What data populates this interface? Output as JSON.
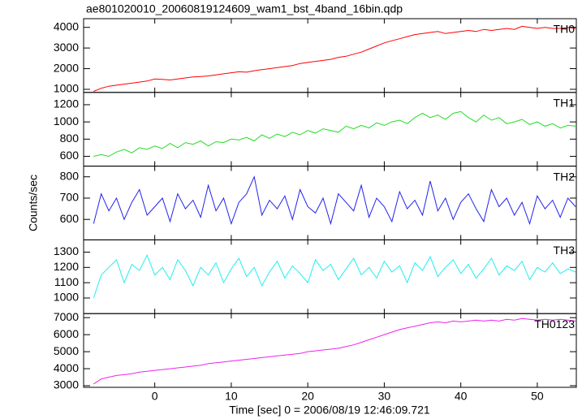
{
  "figure": {
    "title": "ae801020010_20060819124609_wam1_bst_4band_16bin.qdp",
    "xlabel": "Time [sec] 0 = 2006/08/19 12:46:09.721",
    "ylabel": "Counts/sec"
  },
  "chart_data": [
    {
      "type": "line",
      "xlim": [
        -9.3,
        55.1
      ],
      "xticks": [
        0,
        10,
        20,
        30,
        40,
        50
      ],
      "ylim": [
        850,
        4420
      ],
      "yticks": [
        1000,
        2000,
        3000,
        4000
      ],
      "x": [
        -8,
        -7,
        -6,
        -5,
        -4,
        -3,
        -2,
        -1,
        0,
        1,
        2,
        3,
        4,
        5,
        6,
        7,
        8,
        9,
        10,
        11,
        12,
        13,
        14,
        15,
        16,
        17,
        18,
        19,
        20,
        21,
        22,
        23,
        24,
        25,
        26,
        27,
        28,
        29,
        30,
        31,
        32,
        33,
        34,
        35,
        36,
        37,
        38,
        39,
        40,
        41,
        42,
        43,
        44,
        45,
        46,
        47,
        48,
        49,
        50,
        51,
        52,
        53,
        54,
        55
      ],
      "series": [
        {
          "name": "TH0",
          "color": "#ff0000",
          "values": [
            900,
            1050,
            1150,
            1200,
            1250,
            1300,
            1350,
            1400,
            1500,
            1480,
            1450,
            1500,
            1550,
            1600,
            1620,
            1650,
            1700,
            1750,
            1800,
            1850,
            1830,
            1900,
            1950,
            2000,
            2050,
            2100,
            2150,
            2250,
            2300,
            2350,
            2400,
            2450,
            2550,
            2600,
            2700,
            2800,
            2950,
            3100,
            3250,
            3350,
            3450,
            3550,
            3650,
            3700,
            3750,
            3800,
            3700,
            3750,
            3800,
            3850,
            3800,
            3900,
            3850,
            3900,
            3950,
            3900,
            4050,
            4000,
            3950,
            4000,
            3950,
            3950,
            4000,
            3950
          ]
        }
      ]
    },
    {
      "type": "line",
      "xlim": [
        -9.3,
        55.1
      ],
      "xticks": [
        0,
        10,
        20,
        30,
        40,
        50
      ],
      "ylim": [
        486,
        1343
      ],
      "yticks": [
        600,
        800,
        1000,
        1200
      ],
      "x": [
        -8,
        -7,
        -6,
        -5,
        -4,
        -3,
        -2,
        -1,
        0,
        1,
        2,
        3,
        4,
        5,
        6,
        7,
        8,
        9,
        10,
        11,
        12,
        13,
        14,
        15,
        16,
        17,
        18,
        19,
        20,
        21,
        22,
        23,
        24,
        25,
        26,
        27,
        28,
        29,
        30,
        31,
        32,
        33,
        34,
        35,
        36,
        37,
        38,
        39,
        40,
        41,
        42,
        43,
        44,
        45,
        46,
        47,
        48,
        49,
        50,
        51,
        52,
        53,
        54,
        55
      ],
      "series": [
        {
          "name": "TH1",
          "color": "#22dd22",
          "values": [
            600,
            620,
            600,
            650,
            680,
            640,
            700,
            680,
            720,
            690,
            750,
            700,
            760,
            740,
            780,
            720,
            770,
            760,
            800,
            790,
            820,
            780,
            850,
            810,
            860,
            830,
            880,
            850,
            900,
            870,
            920,
            900,
            880,
            950,
            920,
            960,
            930,
            990,
            960,
            1000,
            1020,
            980,
            1050,
            1100,
            1050,
            1080,
            1030,
            1100,
            1120,
            1050,
            1000,
            1080,
            1020,
            1050,
            980,
            1000,
            1030,
            970,
            1000,
            950,
            980,
            930,
            960,
            950
          ]
        }
      ]
    },
    {
      "type": "line",
      "xlim": [
        -9.3,
        55.1
      ],
      "xticks": [
        0,
        10,
        20,
        30,
        40,
        50
      ],
      "ylim": [
        504,
        850
      ],
      "yticks": [
        600,
        700,
        800
      ],
      "x": [
        -8,
        -7,
        -6,
        -5,
        -4,
        -3,
        -2,
        -1,
        0,
        1,
        2,
        3,
        4,
        5,
        6,
        7,
        8,
        9,
        10,
        11,
        12,
        13,
        14,
        15,
        16,
        17,
        18,
        19,
        20,
        21,
        22,
        23,
        24,
        25,
        26,
        27,
        28,
        29,
        30,
        31,
        32,
        33,
        34,
        35,
        36,
        37,
        38,
        39,
        40,
        41,
        42,
        43,
        44,
        45,
        46,
        47,
        48,
        49,
        50,
        51,
        52,
        53,
        54,
        55
      ],
      "series": [
        {
          "name": "TH2",
          "color": "#2222ee",
          "values": [
            580,
            720,
            640,
            700,
            600,
            680,
            740,
            620,
            660,
            700,
            590,
            720,
            650,
            690,
            610,
            760,
            640,
            700,
            580,
            680,
            720,
            800,
            620,
            690,
            650,
            710,
            600,
            740,
            660,
            630,
            700,
            580,
            720,
            680,
            640,
            760,
            610,
            700,
            660,
            590,
            730,
            650,
            690,
            620,
            780,
            640,
            700,
            600,
            680,
            720,
            650,
            590,
            740,
            660,
            700,
            620,
            680,
            580,
            710,
            650,
            690,
            610,
            700,
            660
          ]
        }
      ]
    },
    {
      "type": "line",
      "xlim": [
        -9.3,
        55.1
      ],
      "xticks": [
        0,
        10,
        20,
        30,
        40,
        50
      ],
      "ylim": [
        898,
        1380
      ],
      "yticks": [
        1000,
        1100,
        1200,
        1300
      ],
      "x": [
        -8,
        -7,
        -6,
        -5,
        -4,
        -3,
        -2,
        -1,
        0,
        1,
        2,
        3,
        4,
        5,
        6,
        7,
        8,
        9,
        10,
        11,
        12,
        13,
        14,
        15,
        16,
        17,
        18,
        19,
        20,
        21,
        22,
        23,
        24,
        25,
        26,
        27,
        28,
        29,
        30,
        31,
        32,
        33,
        34,
        35,
        36,
        37,
        38,
        39,
        40,
        41,
        42,
        43,
        44,
        45,
        46,
        47,
        48,
        49,
        50,
        51,
        52,
        53,
        54,
        55
      ],
      "series": [
        {
          "name": "TH3",
          "color": "#22eeee",
          "values": [
            1000,
            1150,
            1200,
            1250,
            1100,
            1220,
            1180,
            1280,
            1150,
            1200,
            1120,
            1250,
            1180,
            1080,
            1200,
            1150,
            1230,
            1100,
            1190,
            1260,
            1140,
            1200,
            1080,
            1170,
            1240,
            1130,
            1210,
            1160,
            1100,
            1250,
            1180,
            1220,
            1120,
            1190,
            1260,
            1150,
            1200,
            1130,
            1240,
            1170,
            1210,
            1100,
            1230,
            1180,
            1270,
            1140,
            1200,
            1250,
            1160,
            1220,
            1130,
            1190,
            1260,
            1150,
            1210,
            1180,
            1240,
            1120,
            1200,
            1170,
            1230,
            1160,
            1190,
            1170
          ]
        }
      ]
    },
    {
      "type": "line",
      "xlim": [
        -9.3,
        55.1
      ],
      "xticks": [
        0,
        10,
        20,
        30,
        40,
        50
      ],
      "ylim": [
        2905,
        7238
      ],
      "yticks": [
        3000,
        4000,
        5000,
        6000,
        7000
      ],
      "x": [
        -8,
        -7,
        -6,
        -5,
        -4,
        -3,
        -2,
        -1,
        0,
        1,
        2,
        3,
        4,
        5,
        6,
        7,
        8,
        9,
        10,
        11,
        12,
        13,
        14,
        15,
        16,
        17,
        18,
        19,
        20,
        21,
        22,
        23,
        24,
        25,
        26,
        27,
        28,
        29,
        30,
        31,
        32,
        33,
        34,
        35,
        36,
        37,
        38,
        39,
        40,
        41,
        42,
        43,
        44,
        45,
        46,
        47,
        48,
        49,
        50,
        51,
        52,
        53,
        54,
        55
      ],
      "series": [
        {
          "name": "TH0123",
          "color": "#ee22ee",
          "values": [
            3100,
            3400,
            3500,
            3600,
            3650,
            3700,
            3800,
            3850,
            3900,
            3950,
            4000,
            4050,
            4100,
            4150,
            4200,
            4300,
            4350,
            4400,
            4450,
            4500,
            4550,
            4600,
            4650,
            4700,
            4750,
            4800,
            4850,
            4900,
            5000,
            5050,
            5100,
            5150,
            5200,
            5300,
            5400,
            5550,
            5700,
            5850,
            6000,
            6150,
            6300,
            6400,
            6500,
            6600,
            6700,
            6750,
            6700,
            6800,
            6750,
            6800,
            6850,
            6800,
            6850,
            6800,
            6900,
            6850,
            6950,
            6900,
            6850,
            6900,
            6850,
            6900,
            6850,
            6800
          ]
        }
      ]
    }
  ]
}
